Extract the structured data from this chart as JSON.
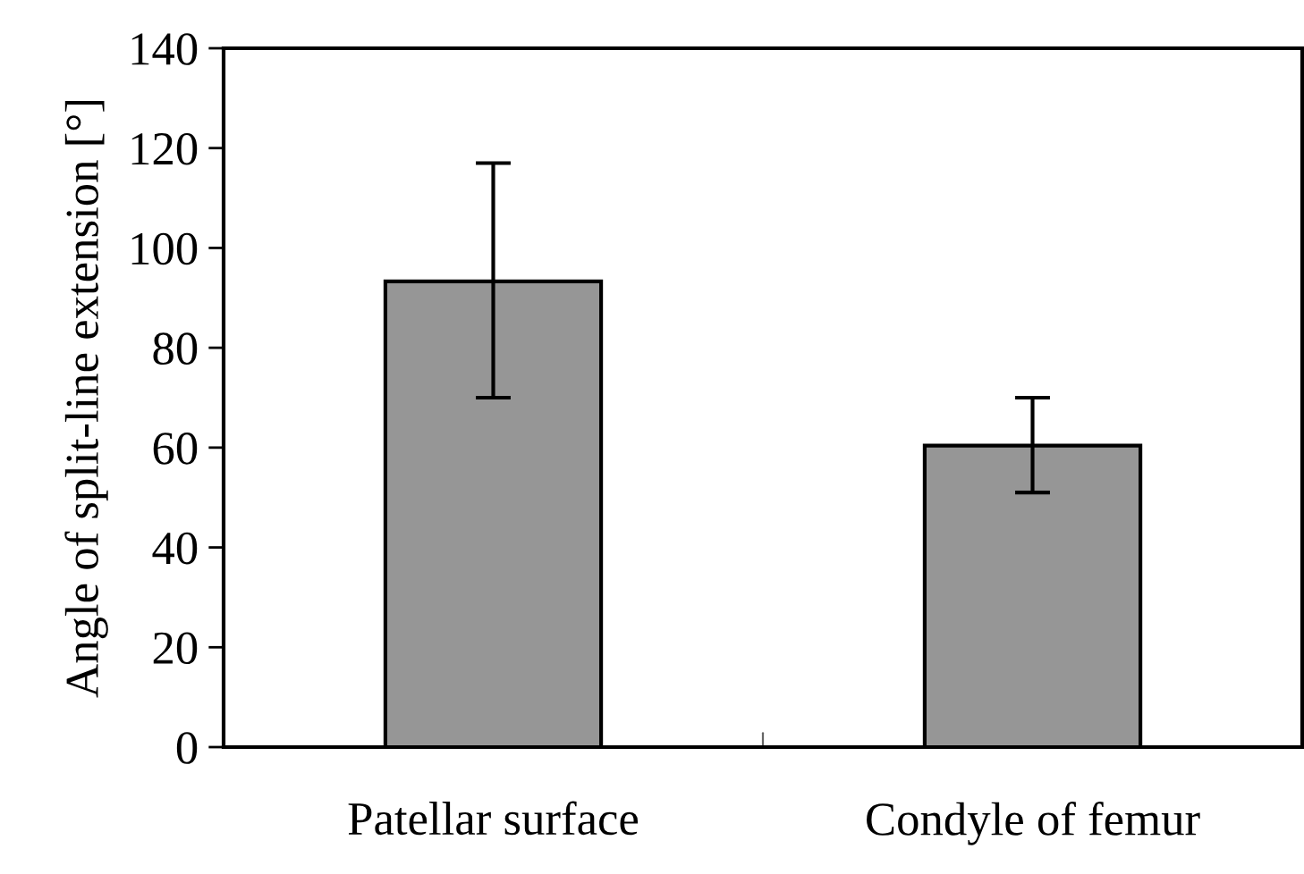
{
  "chart_data": {
    "type": "bar",
    "ylabel": "Angle of split-line extension [°]",
    "categories": [
      "Patellar surface",
      "Condyle of femur"
    ],
    "values": [
      93.3,
      60.4
    ],
    "errors": [
      [
        70,
        117
      ],
      [
        51,
        70
      ]
    ],
    "color": "#969696",
    "ylim": [
      0,
      140
    ],
    "yticks": [
      0,
      20,
      40,
      60,
      80,
      100,
      120,
      140
    ],
    "grid": false
  }
}
